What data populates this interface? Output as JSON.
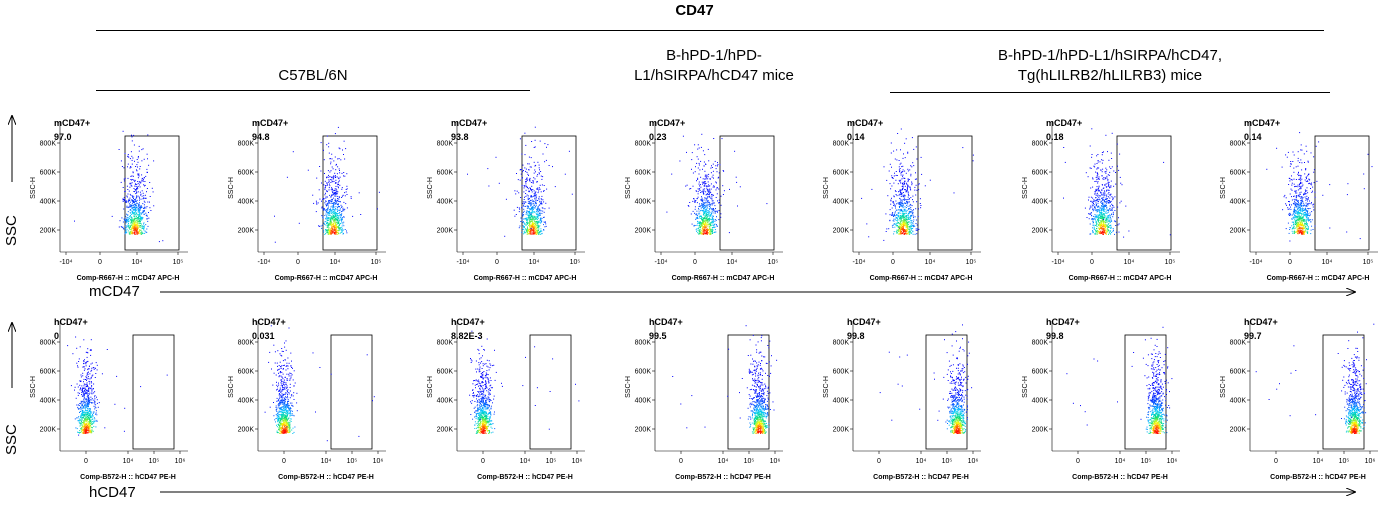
{
  "title": "CD47",
  "groups": [
    {
      "label": "C57BL/6N"
    },
    {
      "label": "B-hPD-1/hPD-L1/hSIRPA/hCD47 mice"
    },
    {
      "label": "B-hPD-1/hPD-L1/hSIRPA/hCD47, Tg(hLILRB2/hLILRB3) mice"
    }
  ],
  "row_labels": {
    "row1_x": "mCD47",
    "row2_x": "hCD47",
    "y": "SSC"
  },
  "colors": {
    "density_low": "#0000ff",
    "density_mid": "#00ffff",
    "density_high": "#ffff00",
    "density_peak": "#ff0000"
  },
  "chart_data": [
    {
      "type": "scatter",
      "row": "mCD47",
      "gate_label": "mCD47+",
      "xlabel": "Comp-R667-H :: mCD47 APC-H",
      "ylabel": "SSC-H",
      "x_ticks": [
        "-10⁴",
        "0",
        "10⁴",
        "10⁵"
      ],
      "y_ticks": [
        "200K",
        "400K",
        "600K",
        "800K"
      ],
      "panels": [
        {
          "sample_group": "C57BL/6N",
          "gate_percent": "97.0",
          "population_center_x": 0.2,
          "gated": true
        },
        {
          "sample_group": "C57BL/6N",
          "gate_percent": "94.8",
          "population_center_x": 0.3,
          "gated": true
        },
        {
          "sample_group": "C57BL/6N",
          "gate_percent": "93.8",
          "population_center_x": 0.2,
          "gated": true
        },
        {
          "sample_group": "B-hPD-1/hPD-L1/hSIRPA/hCD47 mice",
          "gate_percent": "0.23",
          "population_center_x": -0.1,
          "gated": false
        },
        {
          "sample_group": "B-hPD-1/hPD-L1/hSIRPA/hCD47, Tg(hLILRB2/hLILRB3) mice",
          "gate_percent": "0.14",
          "population_center_x": -0.1,
          "gated": false
        },
        {
          "sample_group": "B-hPD-1/hPD-L1/hSIRPA/hCD47, Tg(hLILRB2/hLILRB3) mice",
          "gate_percent": "0.18",
          "population_center_x": -0.1,
          "gated": false
        },
        {
          "sample_group": "B-hPD-1/hPD-L1/hSIRPA/hCD47, Tg(hLILRB2/hLILRB3) mice",
          "gate_percent": "0.14",
          "population_center_x": -0.1,
          "gated": false
        }
      ]
    },
    {
      "type": "scatter",
      "row": "hCD47",
      "gate_label": "hCD47+",
      "xlabel": "Comp-B572-H :: hCD47 PE-H",
      "ylabel": "SSC-H",
      "x_ticks": [
        "0",
        "10⁴",
        "10⁵",
        "10⁶"
      ],
      "y_ticks": [
        "200K",
        "400K",
        "600K",
        "800K"
      ],
      "panels": [
        {
          "sample_group": "C57BL/6N",
          "gate_percent": "0",
          "gated": false
        },
        {
          "sample_group": "C57BL/6N",
          "gate_percent": "0.031",
          "gated": false
        },
        {
          "sample_group": "C57BL/6N",
          "gate_percent": "8.82E-3",
          "gated": false
        },
        {
          "sample_group": "B-hPD-1/hPD-L1/hSIRPA/hCD47 mice",
          "gate_percent": "99.5",
          "gated": true
        },
        {
          "sample_group": "B-hPD-1/hPD-L1/hSIRPA/hCD47, Tg(hLILRB2/hLILRB3) mice",
          "gate_percent": "99.8",
          "gated": true
        },
        {
          "sample_group": "B-hPD-1/hPD-L1/hSIRPA/hCD47, Tg(hLILRB2/hLILRB3) mice",
          "gate_percent": "99.8",
          "gated": true
        },
        {
          "sample_group": "B-hPD-1/hPD-L1/hSIRPA/hCD47, Tg(hLILRB2/hLILRB3) mice",
          "gate_percent": "99.7",
          "gated": true
        }
      ]
    }
  ]
}
